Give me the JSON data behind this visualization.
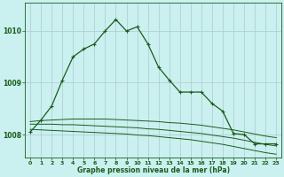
{
  "title": "Graphe pression niveau de la mer (hPa)",
  "bg_color": "#caf0f0",
  "grid_color": "#b0c8d0",
  "line_color": "#1a5c1a",
  "text_color": "#1a5c1a",
  "xlim": [
    -0.5,
    23.5
  ],
  "ylim": [
    1007.55,
    1010.55
  ],
  "yticks": [
    1008,
    1009,
    1010
  ],
  "xticks": [
    0,
    1,
    2,
    3,
    4,
    5,
    6,
    7,
    8,
    9,
    10,
    11,
    12,
    13,
    14,
    15,
    16,
    17,
    18,
    19,
    20,
    21,
    22,
    23
  ],
  "main_x": [
    0,
    1,
    2,
    3,
    4,
    5,
    6,
    7,
    8,
    9,
    10,
    11,
    12,
    13,
    14,
    15,
    16,
    17,
    18,
    19,
    20,
    21,
    22,
    23
  ],
  "main_y": [
    1008.05,
    1008.28,
    1008.55,
    1009.05,
    1009.5,
    1009.65,
    1009.75,
    1010.0,
    1010.22,
    1010.0,
    1010.08,
    1009.75,
    1009.3,
    1009.05,
    1008.82,
    1008.82,
    1008.82,
    1008.6,
    1008.45,
    1008.02,
    1008.0,
    1007.82,
    1007.82,
    1007.82
  ],
  "line1_x": [
    0,
    1,
    2,
    3,
    4,
    5,
    6,
    7,
    8,
    9,
    10,
    11,
    12,
    13,
    14,
    15,
    16,
    17,
    18,
    19,
    20,
    21,
    22,
    23
  ],
  "line1_y": [
    1008.25,
    1008.27,
    1008.28,
    1008.29,
    1008.3,
    1008.3,
    1008.3,
    1008.3,
    1008.29,
    1008.28,
    1008.27,
    1008.26,
    1008.25,
    1008.23,
    1008.22,
    1008.2,
    1008.18,
    1008.15,
    1008.12,
    1008.09,
    1008.05,
    1008.01,
    1007.97,
    1007.94
  ],
  "line2_x": [
    0,
    1,
    2,
    3,
    4,
    5,
    6,
    7,
    8,
    9,
    10,
    11,
    12,
    13,
    14,
    15,
    16,
    17,
    18,
    19,
    20,
    21,
    22,
    23
  ],
  "line2_y": [
    1008.2,
    1008.2,
    1008.2,
    1008.19,
    1008.19,
    1008.18,
    1008.17,
    1008.16,
    1008.15,
    1008.14,
    1008.13,
    1008.11,
    1008.1,
    1008.08,
    1008.06,
    1008.04,
    1008.02,
    1007.99,
    1007.96,
    1007.93,
    1007.89,
    1007.85,
    1007.81,
    1007.78
  ],
  "line3_x": [
    0,
    1,
    2,
    3,
    4,
    5,
    6,
    7,
    8,
    9,
    10,
    11,
    12,
    13,
    14,
    15,
    16,
    17,
    18,
    19,
    20,
    21,
    22,
    23
  ],
  "line3_y": [
    1008.1,
    1008.09,
    1008.08,
    1008.07,
    1008.06,
    1008.05,
    1008.04,
    1008.03,
    1008.02,
    1008.01,
    1007.99,
    1007.98,
    1007.96,
    1007.94,
    1007.92,
    1007.9,
    1007.87,
    1007.84,
    1007.81,
    1007.77,
    1007.73,
    1007.69,
    1007.65,
    1007.62
  ]
}
